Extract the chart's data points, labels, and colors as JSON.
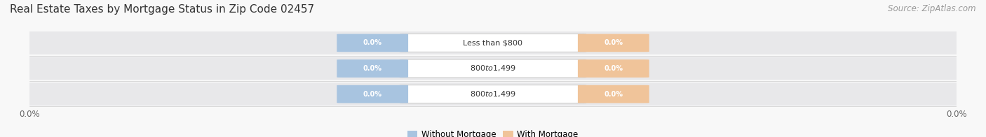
{
  "title": "Real Estate Taxes by Mortgage Status in Zip Code 02457",
  "source": "Source: ZipAtlas.com",
  "categories": [
    "Less than $800",
    "$800 to $1,499",
    "$800 to $1,499"
  ],
  "without_mortgage": [
    0.0,
    0.0,
    0.0
  ],
  "with_mortgage": [
    0.0,
    0.0,
    0.0
  ],
  "bar_color_left": "#a8c4e0",
  "bar_color_right": "#f0c49a",
  "row_bg_color": "#e8e8ea",
  "bg_color": "#f8f8f8",
  "legend_labels": [
    "Without Mortgage",
    "With Mortgage"
  ],
  "title_fontsize": 11,
  "source_fontsize": 8.5,
  "tick_fontsize": 8.5
}
